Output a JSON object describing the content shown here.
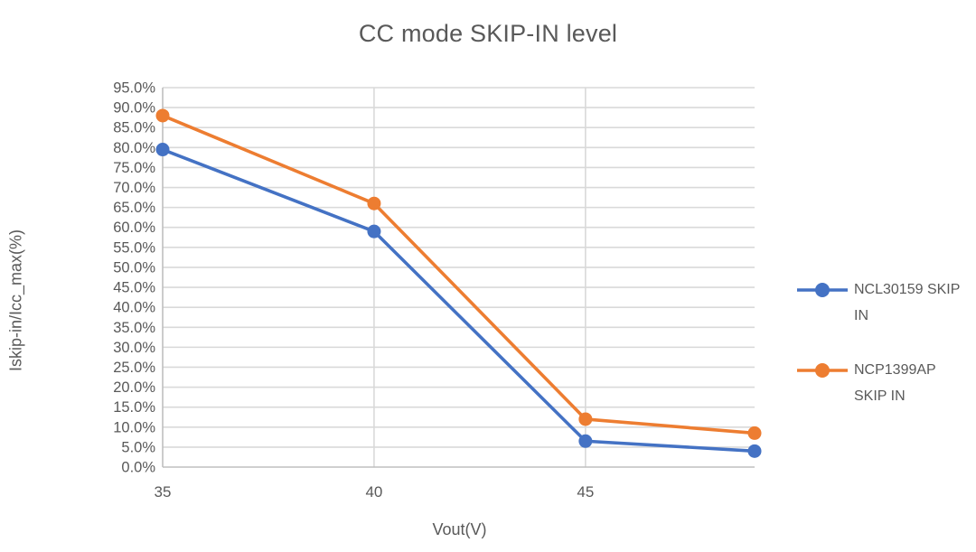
{
  "chart_data": {
    "type": "line",
    "title": "CC mode SKIP-IN level",
    "xlabel": "Vout(V)",
    "ylabel": "Iskip-in/Icc_max(%)",
    "x": [
      35,
      40,
      45,
      49
    ],
    "xlim": [
      35,
      49
    ],
    "x_tick_values": [
      35,
      40,
      45
    ],
    "x_tick_labels": [
      "35",
      "40",
      "45"
    ],
    "ylim": [
      0,
      95
    ],
    "y_tick_step": 5,
    "y_tick_labels": [
      "0.0%",
      "5.0%",
      "10.0%",
      "15.0%",
      "20.0%",
      "25.0%",
      "30.0%",
      "35.0%",
      "40.0%",
      "45.0%",
      "50.0%",
      "55.0%",
      "60.0%",
      "65.0%",
      "70.0%",
      "75.0%",
      "80.0%",
      "85.0%",
      "90.0%",
      "95.0%"
    ],
    "grid": true,
    "legend_position": "right",
    "series": [
      {
        "name": "NCL30159 SKIP IN",
        "color": "#4472C4",
        "values": [
          79.5,
          59,
          6.5,
          4
        ]
      },
      {
        "name": "NCP1399AP SKIP IN",
        "color": "#ED7D31",
        "values": [
          88,
          66,
          12,
          8.5
        ]
      }
    ],
    "colors": {
      "title_text": "#595959",
      "axis_text": "#595959",
      "gridline": "#D9D9D9",
      "axis_line": "#BFBFBF",
      "background": "#FFFFFF"
    }
  }
}
